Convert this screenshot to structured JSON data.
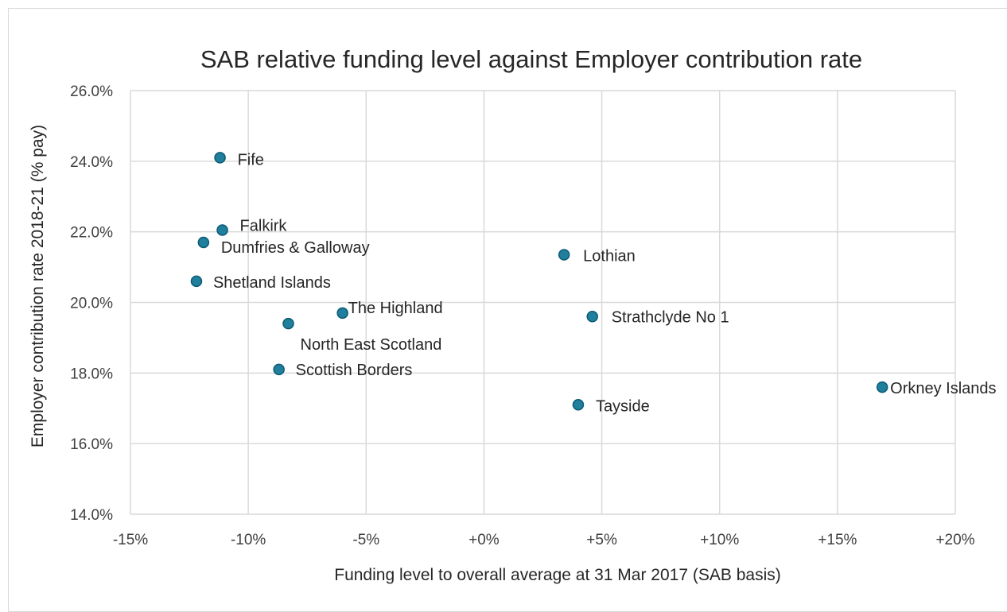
{
  "chart_data": {
    "type": "scatter",
    "title": "SAB relative funding level against Employer contribution rate",
    "xlabel": "Funding level to overall average at 31 Mar 2017 (SAB basis)",
    "ylabel": "Employer contribution rate 2018-21 (% pay)",
    "xlim": [
      -15,
      20
    ],
    "ylim": [
      14,
      26
    ],
    "x_ticks": [
      -15,
      -10,
      -5,
      0,
      5,
      10,
      15,
      20
    ],
    "x_tick_labels": [
      "-15%",
      "-10%",
      "-5%",
      "+0%",
      "+5%",
      "+10%",
      "+15%",
      "+20%"
    ],
    "y_ticks": [
      14,
      16,
      18,
      20,
      22,
      24,
      26
    ],
    "y_tick_labels": [
      "14.0%",
      "16.0%",
      "18.0%",
      "20.0%",
      "22.0%",
      "24.0%",
      "26.0%"
    ],
    "grid": true,
    "legend": false,
    "marker_color": "#1f7f9c",
    "marker_edge": "#0c5a75",
    "points": [
      {
        "label": "Fife",
        "x": -11.2,
        "y": 24.1
      },
      {
        "label": "Falkirk",
        "x": -11.1,
        "y": 22.05
      },
      {
        "label": "Dumfries & Galloway",
        "x": -11.9,
        "y": 21.7
      },
      {
        "label": "Shetland Islands",
        "x": -12.2,
        "y": 20.6
      },
      {
        "label": "The Highland",
        "x": -6.0,
        "y": 19.7
      },
      {
        "label": "North East Scotland",
        "x": -8.3,
        "y": 19.4
      },
      {
        "label": "Scottish Borders",
        "x": -8.7,
        "y": 18.1
      },
      {
        "label": "Lothian",
        "x": 3.4,
        "y": 21.35
      },
      {
        "label": "Strathclyde No 1",
        "x": 4.6,
        "y": 19.6
      },
      {
        "label": "Tayside",
        "x": 4.0,
        "y": 17.1
      },
      {
        "label": "Orkney Islands",
        "x": 16.9,
        "y": 17.6
      }
    ]
  }
}
